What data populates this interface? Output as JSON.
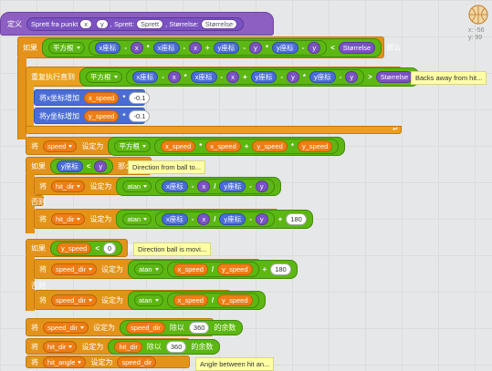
{
  "define": {
    "keyword": "定义",
    "name": "Sprett fra punkt",
    "arg_x": "x",
    "arg_y": "y",
    "sep1": ", Sprett:",
    "arg_sprett": "Sprett",
    "sep2": ", Størrelse:",
    "arg_size": "Størrelse"
  },
  "stage_coords": {
    "x": "x: -56",
    "y": "y: 99"
  },
  "if1": {
    "keyword": "如果",
    "sqrt": "平方根",
    "xpos": "x座标",
    "x": "x",
    "ypos": "y座标",
    "y": "y",
    "lt": "<",
    "size": "Størrelse",
    "then": "那么"
  },
  "repeat": {
    "keyword": "重复执行直到",
    "sqrt": "平方根",
    "xpos": "x座标",
    "x": "x",
    "ypos": "y座标",
    "y": "y",
    "gt": ">",
    "size": "Størrelse"
  },
  "comments": {
    "backs_away": "Backs away from hit...",
    "direction_ball": "Direction from ball to...",
    "direction_movi": "Direction ball is movi...",
    "angle_between": "Angle between hit an..."
  },
  "change_x": {
    "label": "将x坐标增加",
    "var": "x_speed",
    "times": "*",
    "val": "-0.1"
  },
  "change_y": {
    "label": "将y坐标增加",
    "var": "y_speed",
    "times": "*",
    "val": "-0.1"
  },
  "set_speed": {
    "set": "将",
    "var": "speed",
    "to": "设定为",
    "sqrt": "平方根",
    "a": "x_speed",
    "b": "x_speed",
    "plus": "+",
    "c": "y_speed",
    "d": "y_speed"
  },
  "if2": {
    "keyword": "如果",
    "ypos": "y座标",
    "lt": "<",
    "y": "y",
    "then": "那么"
  },
  "hitdir1": {
    "set": "将",
    "var": "hit_dir",
    "to": "设定为",
    "atan": "atan",
    "xpos": "x座标",
    "x": "x",
    "div": "/",
    "ypos": "y座标",
    "y": "y"
  },
  "else1": "否则",
  "hitdir2": {
    "set": "将",
    "var": "hit_dir",
    "to": "设定为",
    "atan": "atan",
    "xpos": "x座标",
    "x": "x",
    "div": "/",
    "ypos": "y座标",
    "y": "y",
    "plus": "+",
    "n": "180"
  },
  "if3": {
    "keyword": "如果",
    "var": "y_speed",
    "lt": "<",
    "n": "0",
    "then": "那么"
  },
  "speeddir1": {
    "set": "将",
    "var": "speed_dir",
    "to": "设定为",
    "atan": "atan",
    "a": "x_speed",
    "div": "/",
    "b": "y_speed",
    "plus": "+",
    "n": "180"
  },
  "else2": "否则",
  "speeddir2": {
    "set": "将",
    "var": "speed_dir",
    "to": "设定为",
    "atan": "atan",
    "a": "x_speed",
    "div": "/",
    "b": "y_speed"
  },
  "mod1": {
    "set": "将",
    "var": "speed_dir",
    "to": "设定为",
    "val": "speed_dir",
    "mod": "除以",
    "n": "360",
    "rem": "的余数"
  },
  "mod2": {
    "set": "将",
    "var": "hit_dir",
    "to": "设定为",
    "val": "hit_dir",
    "mod": "除以",
    "n": "360",
    "rem": "的余数"
  },
  "last": {
    "set": "将",
    "var": "hit_angle",
    "to": "设定为",
    "val": "speed_dir"
  }
}
